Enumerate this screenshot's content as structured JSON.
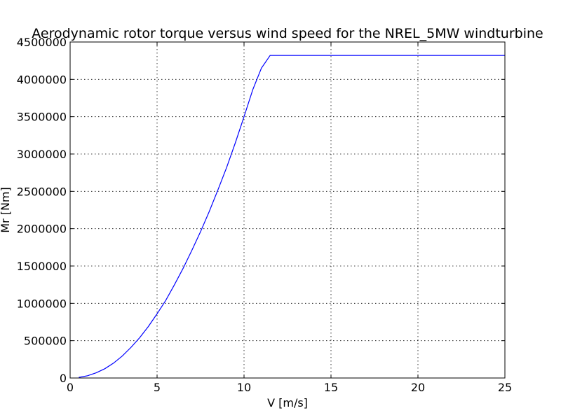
{
  "chart_data": {
    "type": "line",
    "title": "Aerodynamic rotor torque versus wind speed for the NREL_5MW windturbine",
    "xlabel": "V [m/s]",
    "ylabel": "Mr [Nm]",
    "xlim": [
      0,
      25
    ],
    "ylim": [
      0,
      4500000
    ],
    "xticks": [
      0,
      5,
      10,
      15,
      20,
      25
    ],
    "xtick_labels": [
      "0",
      "5",
      "10",
      "15",
      "20",
      "25"
    ],
    "yticks": [
      0,
      500000,
      1000000,
      1500000,
      2000000,
      2500000,
      3000000,
      3500000,
      4000000,
      4500000
    ],
    "ytick_labels": [
      "0",
      "500000",
      "1000000",
      "1500000",
      "2000000",
      "2500000",
      "3000000",
      "3500000",
      "4000000",
      "4500000"
    ],
    "grid": true,
    "series": [
      {
        "color": "#0000ff",
        "x": [
          0.5,
          1,
          1.5,
          2,
          2.5,
          3,
          3.5,
          4,
          4.5,
          5,
          5.5,
          6,
          6.5,
          7,
          7.5,
          8,
          8.5,
          9,
          9.5,
          10,
          10.5,
          11,
          11.5,
          12,
          13,
          14,
          15,
          16,
          17,
          18,
          19,
          20,
          21,
          22,
          23,
          24,
          25
        ],
        "y": [
          8000,
          30000,
          70000,
          125000,
          200000,
          295000,
          410000,
          540000,
          690000,
          860000,
          1040000,
          1250000,
          1470000,
          1710000,
          1960000,
          2230000,
          2520000,
          2820000,
          3150000,
          3500000,
          3860000,
          4150000,
          4320000,
          4320000,
          4320000,
          4320000,
          4320000,
          4320000,
          4320000,
          4320000,
          4320000,
          4320000,
          4320000,
          4320000,
          4320000,
          4320000,
          4320000
        ]
      }
    ]
  }
}
